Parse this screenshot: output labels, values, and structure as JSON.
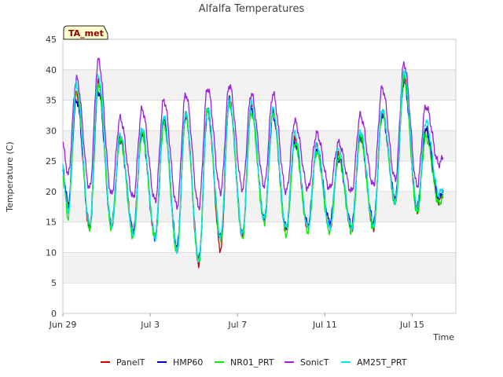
{
  "chart_data": {
    "type": "line",
    "title": "Alfalfa Temperatures",
    "xlabel": "Time",
    "ylabel": "Temperature (C)",
    "badge": "TA_met",
    "ylim": [
      0,
      45
    ],
    "yticks": [
      0,
      5,
      10,
      15,
      20,
      25,
      30,
      35,
      40,
      45
    ],
    "xlim": [
      "2023-06-29",
      "2023-07-17"
    ],
    "xticks": [
      {
        "date": "2023-06-29",
        "label": "Jun 29"
      },
      {
        "date": "2023-07-03",
        "label": "Jul 3"
      },
      {
        "date": "2023-07-07",
        "label": "Jul 7"
      },
      {
        "date": "2023-07-11",
        "label": "Jul 11"
      },
      {
        "date": "2023-07-15",
        "label": "Jul 15"
      }
    ],
    "grid": true,
    "legend_position": "bottom",
    "daily": {
      "dates": [
        "2023-06-29",
        "2023-06-30",
        "2023-07-01",
        "2023-07-02",
        "2023-07-03",
        "2023-07-04",
        "2023-07-05",
        "2023-07-06",
        "2023-07-07",
        "2023-07-08",
        "2023-07-09",
        "2023-07-10",
        "2023-07-11",
        "2023-07-12",
        "2023-07-13",
        "2023-07-14",
        "2023-07-15",
        "2023-07-16"
      ]
    },
    "series": [
      {
        "name": "PanelT",
        "color": "#cc0000",
        "mins": [
          17.5,
          14.0,
          14.5,
          13.5,
          12.5,
          10.5,
          8.2,
          10.5,
          12.8,
          15.5,
          13.5,
          14.0,
          14.0,
          13.8,
          14.0,
          18.5,
          17.0,
          18.5
        ],
        "maxs": [
          36.0,
          38.0,
          29.0,
          30.0,
          32.0,
          32.5,
          33.5,
          35.0,
          34.0,
          33.0,
          28.5,
          27.5,
          26.0,
          29.0,
          33.0,
          39.0,
          30.5,
          20.0
        ]
      },
      {
        "name": "HMP60",
        "color": "#0000cc",
        "mins": [
          17.5,
          14.5,
          14.5,
          13.5,
          12.5,
          11.0,
          9.0,
          12.5,
          13.0,
          15.5,
          14.0,
          14.5,
          15.0,
          14.5,
          15.0,
          19.0,
          17.5,
          19.0
        ],
        "maxs": [
          35.0,
          36.5,
          28.5,
          29.5,
          31.5,
          32.5,
          33.0,
          35.0,
          33.5,
          32.5,
          28.0,
          27.0,
          25.5,
          29.0,
          32.5,
          38.0,
          30.0,
          19.5
        ]
      },
      {
        "name": "NR01_PRT",
        "color": "#00ee00",
        "mins": [
          15.5,
          14.0,
          14.0,
          12.5,
          12.5,
          10.0,
          8.5,
          12.0,
          12.5,
          15.0,
          13.0,
          13.5,
          13.5,
          13.5,
          14.0,
          18.0,
          16.5,
          18.0
        ],
        "maxs": [
          36.5,
          37.5,
          28.5,
          29.5,
          31.0,
          32.5,
          33.5,
          34.5,
          33.0,
          33.0,
          28.0,
          26.5,
          25.5,
          29.0,
          33.0,
          38.5,
          29.0,
          19.0
        ]
      },
      {
        "name": "SonicT",
        "color": "#9922dd",
        "mins": [
          22.5,
          20.5,
          19.5,
          19.0,
          18.5,
          17.5,
          17.5,
          20.0,
          20.5,
          21.0,
          20.0,
          20.5,
          20.5,
          20.0,
          21.0,
          22.0,
          21.0,
          24.5
        ],
        "maxs": [
          38.5,
          41.5,
          32.0,
          33.5,
          35.0,
          36.0,
          37.0,
          37.5,
          36.0,
          36.0,
          31.5,
          29.5,
          28.0,
          32.5,
          37.0,
          41.0,
          34.0,
          25.0
        ]
      },
      {
        "name": "AM25T_PRT",
        "color": "#00e5ee",
        "mins": [
          16.5,
          14.5,
          14.5,
          13.0,
          12.5,
          10.5,
          8.8,
          12.5,
          13.0,
          15.5,
          14.0,
          14.0,
          14.0,
          14.0,
          14.5,
          18.5,
          17.5,
          19.5
        ],
        "maxs": [
          37.5,
          39.0,
          29.5,
          30.5,
          32.5,
          33.0,
          33.5,
          35.0,
          34.5,
          33.5,
          29.5,
          27.5,
          27.0,
          30.0,
          33.5,
          40.0,
          31.5,
          20.0
        ]
      }
    ]
  }
}
